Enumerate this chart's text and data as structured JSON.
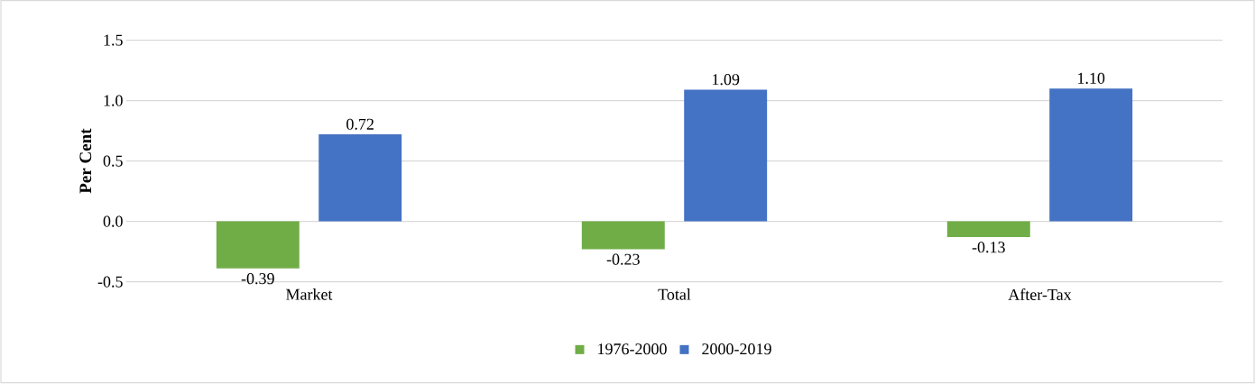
{
  "chart_data": {
    "type": "bar",
    "ylabel": "Per Cent",
    "categories": [
      "Market",
      "Total",
      "After-Tax"
    ],
    "series": [
      {
        "name": "1976-2000",
        "color": "#70ad47",
        "values": [
          -0.39,
          -0.23,
          -0.13
        ],
        "value_labels": [
          "-0.39",
          "-0.23",
          "-0.13"
        ]
      },
      {
        "name": "2000-2019",
        "color": "#4472c4",
        "values": [
          0.72,
          1.09,
          1.1
        ],
        "value_labels": [
          "0.72",
          "1.09",
          "1.10"
        ]
      }
    ],
    "ylim": [
      -0.5,
      1.5
    ],
    "yticks": [
      {
        "value": -0.5,
        "label": "-0.5"
      },
      {
        "value": 0,
        "label": "0.0"
      },
      {
        "value": 0.5,
        "label": "0.5"
      },
      {
        "value": 1,
        "label": "1.0"
      },
      {
        "value": 1.5,
        "label": "1.5"
      }
    ],
    "grid": "y",
    "legend": "bottom"
  }
}
